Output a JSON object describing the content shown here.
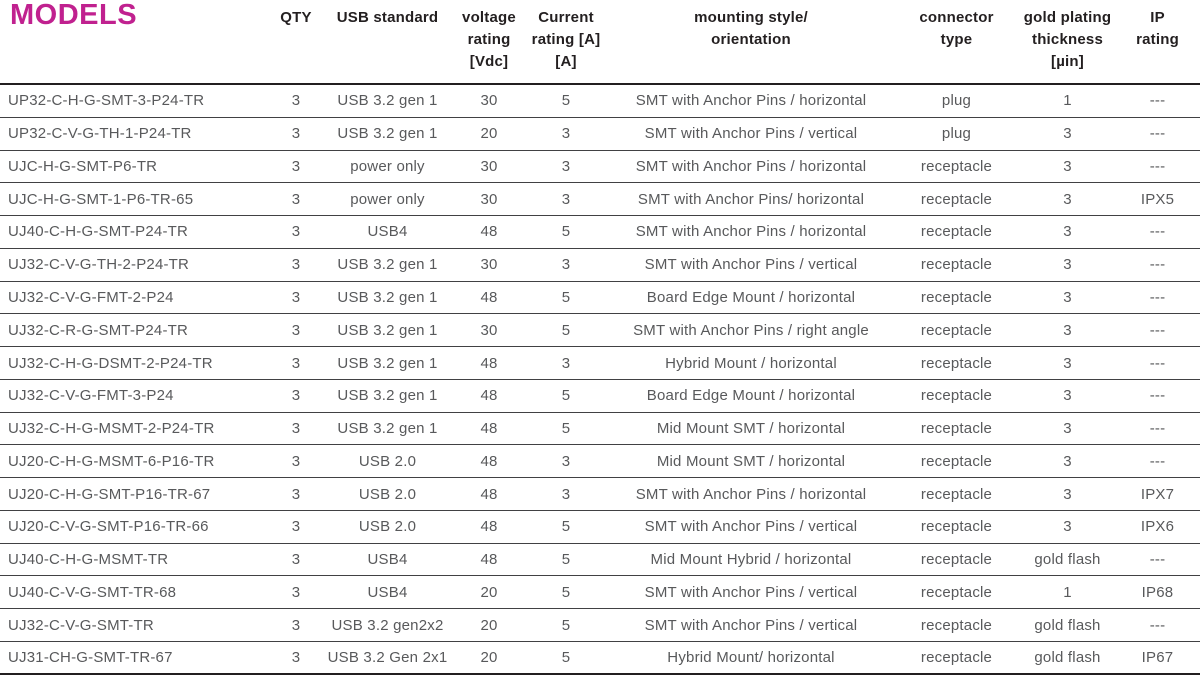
{
  "title": {
    "text": "MODELS",
    "color": "#c0218f"
  },
  "colors": {
    "header_text": "#231f20",
    "cell_text": "#58595b",
    "row_line": "#414143",
    "strong_line": "#231f20"
  },
  "table": {
    "headers": [
      {
        "id": "model",
        "lines": []
      },
      {
        "id": "qty",
        "lines": [
          "QTY"
        ]
      },
      {
        "id": "usb",
        "lines": [
          "USB standard"
        ]
      },
      {
        "id": "voltage",
        "lines": [
          "voltage",
          "rating",
          "[Vdc]"
        ]
      },
      {
        "id": "current",
        "lines": [
          "Current",
          "rating [A]",
          "[A]"
        ]
      },
      {
        "id": "mounting",
        "lines": [
          "mounting style/",
          "orientation"
        ]
      },
      {
        "id": "connector",
        "lines": [
          "connector",
          "type"
        ]
      },
      {
        "id": "gold",
        "lines": [
          "gold plating",
          "thickness",
          "[µin]"
        ]
      },
      {
        "id": "ip",
        "lines": [
          "IP",
          "rating"
        ]
      }
    ],
    "rows": [
      {
        "model": "UP32-C-H-G-SMT-3-P24-TR",
        "qty": "3",
        "usb": "USB 3.2 gen 1",
        "voltage": "30",
        "current": "5",
        "mounting": "SMT with Anchor Pins / horizontal",
        "connector": "plug",
        "gold": "1",
        "ip": "---"
      },
      {
        "model": "UP32-C-V-G-TH-1-P24-TR",
        "qty": "3",
        "usb": "USB 3.2 gen 1",
        "voltage": "20",
        "current": "3",
        "mounting": "SMT with Anchor Pins / vertical",
        "connector": "plug",
        "gold": "3",
        "ip": "---"
      },
      {
        "model": "UJC-H-G-SMT-P6-TR",
        "qty": "3",
        "usb": "power only",
        "voltage": "30",
        "current": "3",
        "mounting": "SMT with Anchor Pins / horizontal",
        "connector": "receptacle",
        "gold": "3",
        "ip": "---"
      },
      {
        "model": "UJC-H-G-SMT-1-P6-TR-65",
        "qty": "3",
        "usb": "power only",
        "voltage": "30",
        "current": "3",
        "mounting": "SMT with Anchor Pins/ horizontal",
        "connector": "receptacle",
        "gold": "3",
        "ip": "IPX5"
      },
      {
        "model": "UJ40-C-H-G-SMT-P24-TR",
        "qty": "3",
        "usb": "USB4",
        "voltage": "48",
        "current": "5",
        "mounting": "SMT with Anchor Pins / horizontal",
        "connector": "receptacle",
        "gold": "3",
        "ip": "---"
      },
      {
        "model": "UJ32-C-V-G-TH-2-P24-TR",
        "qty": "3",
        "usb": "USB 3.2 gen 1",
        "voltage": "30",
        "current": "3",
        "mounting": "SMT with Anchor Pins / vertical",
        "connector": "receptacle",
        "gold": "3",
        "ip": "---"
      },
      {
        "model": "UJ32-C-V-G-FMT-2-P24",
        "qty": "3",
        "usb": "USB 3.2 gen 1",
        "voltage": "48",
        "current": "5",
        "mounting": "Board Edge Mount / horizontal",
        "connector": "receptacle",
        "gold": "3",
        "ip": "---"
      },
      {
        "model": "UJ32-C-R-G-SMT-P24-TR",
        "qty": "3",
        "usb": "USB 3.2 gen 1",
        "voltage": "30",
        "current": "5",
        "mounting": "SMT with Anchor Pins / right angle",
        "connector": "receptacle",
        "gold": "3",
        "ip": "---"
      },
      {
        "model": "UJ32-C-H-G-DSMT-2-P24-TR",
        "qty": "3",
        "usb": "USB 3.2 gen 1",
        "voltage": "48",
        "current": "3",
        "mounting": "Hybrid Mount / horizontal",
        "connector": "receptacle",
        "gold": "3",
        "ip": "---"
      },
      {
        "model": "UJ32-C-V-G-FMT-3-P24",
        "qty": "3",
        "usb": "USB 3.2 gen 1",
        "voltage": "48",
        "current": "5",
        "mounting": "Board Edge Mount / horizontal",
        "connector": "receptacle",
        "gold": "3",
        "ip": "---"
      },
      {
        "model": "UJ32-C-H-G-MSMT-2-P24-TR",
        "qty": "3",
        "usb": "USB 3.2 gen 1",
        "voltage": "48",
        "current": "5",
        "mounting": "Mid Mount SMT / horizontal",
        "connector": "receptacle",
        "gold": "3",
        "ip": "---"
      },
      {
        "model": "UJ20-C-H-G-MSMT-6-P16-TR",
        "qty": "3",
        "usb": "USB 2.0",
        "voltage": "48",
        "current": "3",
        "mounting": "Mid Mount SMT / horizontal",
        "connector": "receptacle",
        "gold": "3",
        "ip": "---"
      },
      {
        "model": "UJ20-C-H-G-SMT-P16-TR-67",
        "qty": "3",
        "usb": "USB 2.0",
        "voltage": "48",
        "current": "3",
        "mounting": "SMT with Anchor Pins / horizontal",
        "connector": "receptacle",
        "gold": "3",
        "ip": "IPX7"
      },
      {
        "model": "UJ20-C-V-G-SMT-P16-TR-66",
        "qty": "3",
        "usb": "USB 2.0",
        "voltage": "48",
        "current": "5",
        "mounting": "SMT with Anchor Pins / vertical",
        "connector": "receptacle",
        "gold": "3",
        "ip": "IPX6"
      },
      {
        "model": "UJ40-C-H-G-MSMT-TR",
        "qty": "3",
        "usb": "USB4",
        "voltage": "48",
        "current": "5",
        "mounting": "Mid Mount Hybrid / horizontal",
        "connector": "receptacle",
        "gold": "gold flash",
        "ip": "---"
      },
      {
        "model": "UJ40-C-V-G-SMT-TR-68",
        "qty": "3",
        "usb": "USB4",
        "voltage": "20",
        "current": "5",
        "mounting": "SMT with Anchor Pins / vertical",
        "connector": "receptacle",
        "gold": "1",
        "ip": "IP68"
      },
      {
        "model": "UJ32-C-V-G-SMT-TR",
        "qty": "3",
        "usb": "USB 3.2 gen2x2",
        "voltage": "20",
        "current": "5",
        "mounting": "SMT with Anchor Pins / vertical",
        "connector": "receptacle",
        "gold": "gold flash",
        "ip": "---"
      },
      {
        "model": "UJ31-CH-G-SMT-TR-67",
        "qty": "3",
        "usb": "USB 3.2 Gen 2x1",
        "voltage": "20",
        "current": "5",
        "mounting": "Hybrid Mount/ horizontal",
        "connector": "receptacle",
        "gold": "gold flash",
        "ip": "IP67"
      }
    ]
  }
}
